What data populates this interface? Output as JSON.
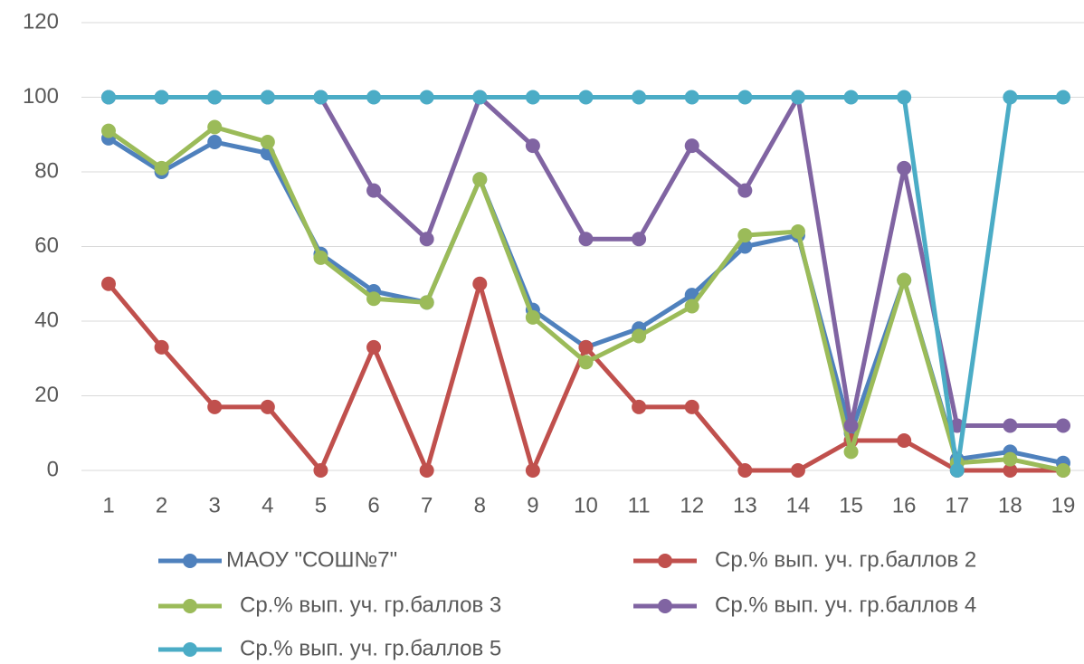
{
  "chart_data": {
    "type": "line",
    "categories": [
      1,
      2,
      3,
      4,
      5,
      6,
      7,
      8,
      9,
      10,
      11,
      12,
      13,
      14,
      15,
      16,
      17,
      18,
      19
    ],
    "series": [
      {
        "name": "МАОУ \"СОШ№7\"",
        "color": "#4f81bd",
        "values": [
          89,
          80,
          88,
          85,
          58,
          48,
          45,
          78,
          43,
          33,
          38,
          47,
          60,
          63,
          10,
          51,
          3,
          5,
          2
        ]
      },
      {
        "name": "Ср.% вып. уч. гр.баллов 2",
        "color": "#c0504d",
        "values": [
          50,
          33,
          17,
          17,
          0,
          33,
          0,
          50,
          0,
          33,
          17,
          17,
          0,
          0,
          8,
          8,
          0,
          0,
          0
        ]
      },
      {
        "name": "Ср.% вып. уч. гр.баллов 3",
        "color": "#9bbb59",
        "values": [
          91,
          81,
          92,
          88,
          57,
          46,
          45,
          78,
          41,
          29,
          36,
          44,
          63,
          64,
          5,
          51,
          2,
          3,
          0
        ]
      },
      {
        "name": "Ср.% вып. уч. гр.баллов 4",
        "color": "#8064a2",
        "values": [
          100,
          100,
          100,
          100,
          100,
          75,
          62,
          100,
          87,
          62,
          62,
          87,
          75,
          100,
          12,
          81,
          12,
          12,
          12
        ]
      },
      {
        "name": "Ср.% вып. уч. гр.баллов 5",
        "color": "#4bacc6",
        "values": [
          100,
          100,
          100,
          100,
          100,
          100,
          100,
          100,
          100,
          100,
          100,
          100,
          100,
          100,
          100,
          100,
          0,
          100,
          100
        ]
      }
    ],
    "ylim": [
      0,
      120
    ],
    "yticks": [
      0,
      20,
      40,
      60,
      80,
      100,
      120
    ],
    "grid": true,
    "legend": "bottom"
  }
}
